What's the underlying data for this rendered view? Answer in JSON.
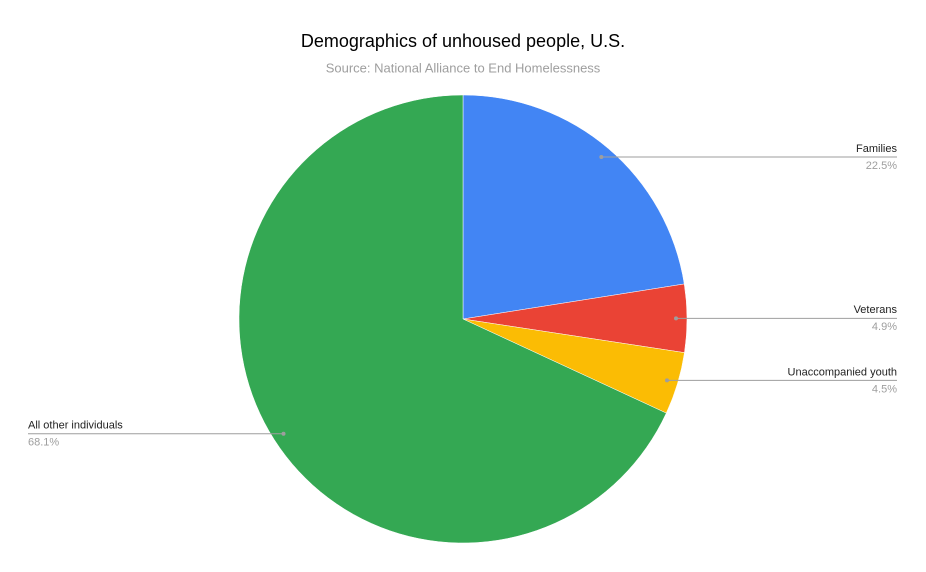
{
  "chart_data": {
    "type": "pie",
    "title": "Demographics of unhoused people, U.S.",
    "subtitle": "Source: National Alliance to End Homelessness",
    "categories": [
      "Families",
      "Veterans",
      "Unaccompanied youth",
      "All other individuals"
    ],
    "values": [
      22.5,
      4.9,
      4.5,
      68.1
    ],
    "value_labels": [
      "22.5%",
      "4.9%",
      "4.5%",
      "68.1%"
    ],
    "colors": [
      "#4285f4",
      "#ea4335",
      "#fbbc04",
      "#34a853"
    ]
  }
}
